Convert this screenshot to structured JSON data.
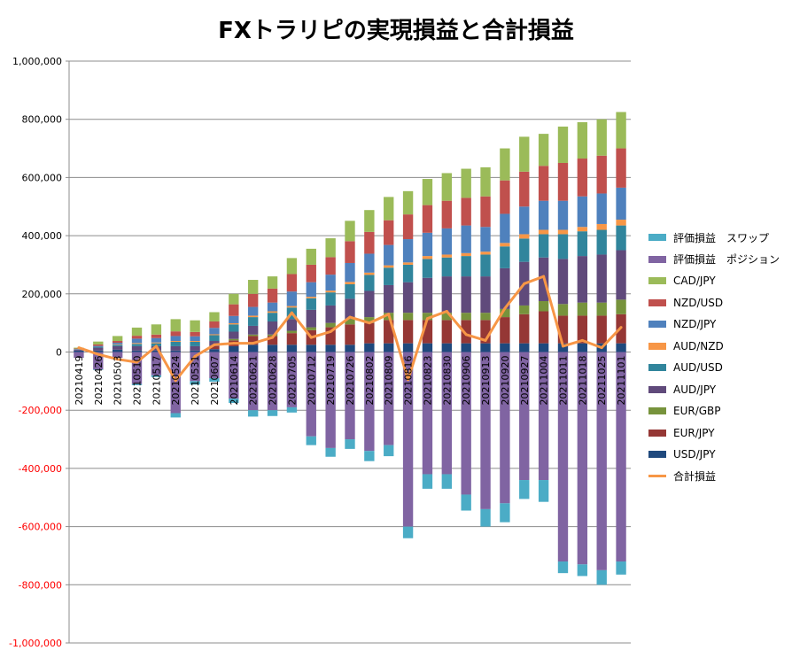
{
  "chart_data": {
    "type": "bar",
    "title": "FXトラリピの実現損益と合計損益",
    "ylim": [
      -1000000,
      1000000
    ],
    "yticks": [
      "1,000,000",
      "800,000",
      "600,000",
      "400,000",
      "200,000",
      "0",
      "-200,000",
      "-400,000",
      "-600,000",
      "-800,000",
      "-1,000,000"
    ],
    "ytick_values": [
      1000000,
      800000,
      600000,
      400000,
      200000,
      0,
      -200000,
      -400000,
      -600000,
      -800000,
      -1000000
    ],
    "negative_tick_color": "#ff0000",
    "grid": true,
    "legend_position": "right",
    "categories": [
      "20210419",
      "20210426",
      "20210503",
      "20210510",
      "20210517",
      "20210524",
      "20210531",
      "20210607",
      "20210614",
      "20210621",
      "20210628",
      "20210705",
      "20210712",
      "20210719",
      "20210726",
      "20210802",
      "20210809",
      "20210816",
      "20210823",
      "20210830",
      "20210906",
      "20210913",
      "20210920",
      "20210927",
      "20211004",
      "20211011",
      "20211018",
      "20211025",
      "20211101"
    ],
    "labeled_categories": [
      "20210419",
      "20210426",
      "20210503",
      "20210510",
      "20210517",
      "20210524",
      "20210531",
      "20210607",
      "20210614",
      "20210621",
      "20210628",
      "20210705",
      "20210712",
      "20210719",
      "20210726",
      "20210802",
      "20210809",
      "20210816",
      "20210823",
      "20210830",
      "20210906",
      "20210913",
      "20210920",
      "20210927",
      "20211004",
      "20211011",
      "20211018",
      "20211025",
      "20211101"
    ],
    "series": [
      {
        "name": "評価損益　スワップ",
        "color": "#4bacc6",
        "type": "bar",
        "values": [
          0,
          -2000,
          0,
          -4000,
          -6000,
          -15000,
          -12000,
          -12000,
          -15000,
          -22000,
          -20000,
          -18000,
          -30000,
          -30000,
          -33000,
          -35000,
          -38000,
          -40000,
          -50000,
          -50000,
          -55000,
          -60000,
          -65000,
          -65000,
          -75000,
          -40000,
          -40000,
          -50000,
          -45000
        ]
      },
      {
        "name": "評価損益　ポジション",
        "color": "#8064a2",
        "type": "bar",
        "values": [
          -20000,
          -60000,
          -20000,
          -110000,
          -80000,
          -210000,
          -100000,
          -90000,
          -160000,
          -200000,
          -200000,
          -190000,
          -290000,
          -330000,
          -300000,
          -340000,
          -320000,
          -600000,
          -420000,
          -420000,
          -490000,
          -540000,
          -520000,
          -440000,
          -440000,
          -720000,
          -730000,
          -750000,
          -720000
        ]
      },
      {
        "name": "CAD/JPY",
        "color": "#9bbb59",
        "type": "bar",
        "values": [
          3000,
          10000,
          17000,
          28000,
          35000,
          42000,
          40000,
          32000,
          36000,
          48000,
          42000,
          55000,
          55000,
          65000,
          70000,
          75000,
          80000,
          80000,
          90000,
          95000,
          100000,
          100000,
          110000,
          120000,
          110000,
          125000,
          125000,
          125000,
          125000
        ]
      },
      {
        "name": "NZD/USD",
        "color": "#c0504d",
        "type": "bar",
        "values": [
          2000,
          5000,
          6000,
          10000,
          12000,
          16000,
          15000,
          22000,
          40000,
          45000,
          48000,
          60000,
          60000,
          60000,
          75000,
          75000,
          85000,
          85000,
          95000,
          95000,
          95000,
          105000,
          115000,
          120000,
          120000,
          130000,
          130000,
          130000,
          135000
        ]
      },
      {
        "name": "NZD/JPY",
        "color": "#4f81bd",
        "type": "bar",
        "values": [
          1000,
          3000,
          5000,
          15000,
          15000,
          17000,
          16000,
          22000,
          25000,
          30000,
          30000,
          50000,
          50000,
          55000,
          65000,
          65000,
          70000,
          80000,
          80000,
          90000,
          95000,
          85000,
          100000,
          95000,
          100000,
          100000,
          105000,
          105000,
          110000
        ]
      },
      {
        "name": "AUD/NZD",
        "color": "#f79646",
        "type": "bar",
        "values": [
          0,
          0,
          2000,
          3000,
          3000,
          3000,
          3000,
          3000,
          4000,
          5000,
          5000,
          5000,
          5000,
          6000,
          8000,
          8000,
          8000,
          8000,
          10000,
          10000,
          10000,
          10000,
          12000,
          15000,
          15000,
          15000,
          15000,
          20000,
          20000
        ]
      },
      {
        "name": "AUD/USD",
        "color": "#31859c",
        "type": "bar",
        "values": [
          1000,
          3000,
          5000,
          8000,
          10000,
          15000,
          15000,
          20000,
          25000,
          30000,
          30000,
          40000,
          40000,
          45000,
          50000,
          55000,
          60000,
          60000,
          65000,
          65000,
          70000,
          75000,
          75000,
          80000,
          80000,
          85000,
          85000,
          85000,
          85000
        ]
      },
      {
        "name": "AUD/JPY",
        "color": "#604a7b",
        "type": "bar",
        "values": [
          3000,
          10000,
          12000,
          15000,
          15000,
          15000,
          15000,
          18000,
          25000,
          30000,
          45000,
          40000,
          60000,
          60000,
          70000,
          90000,
          95000,
          105000,
          120000,
          125000,
          125000,
          125000,
          140000,
          150000,
          150000,
          155000,
          160000,
          165000,
          170000
        ]
      },
      {
        "name": "EUR/GBP",
        "color": "#77933c",
        "type": "bar",
        "values": [
          0,
          0,
          0,
          0,
          0,
          0,
          0,
          0,
          5000,
          5000,
          5000,
          8000,
          10000,
          15000,
          18000,
          20000,
          25000,
          25000,
          25000,
          25000,
          25000,
          25000,
          28000,
          30000,
          35000,
          40000,
          45000,
          45000,
          50000
        ]
      },
      {
        "name": "EUR/JPY",
        "color": "#953735",
        "type": "bar",
        "values": [
          0,
          0,
          0,
          0,
          0,
          0,
          0,
          10000,
          20000,
          30000,
          30000,
          40000,
          50000,
          60000,
          70000,
          70000,
          80000,
          80000,
          80000,
          80000,
          80000,
          80000,
          90000,
          100000,
          110000,
          95000,
          95000,
          95000,
          100000
        ]
      },
      {
        "name": "USD/JPY",
        "color": "#1f497d",
        "type": "bar",
        "values": [
          5000,
          5000,
          8000,
          5000,
          5000,
          5000,
          5000,
          10000,
          20000,
          25000,
          25000,
          25000,
          25000,
          25000,
          25000,
          30000,
          30000,
          30000,
          30000,
          30000,
          30000,
          30000,
          30000,
          30000,
          30000,
          30000,
          30000,
          30000,
          30000
        ]
      },
      {
        "name": "合計損益",
        "color": "#f79646",
        "type": "line",
        "values": [
          15000,
          -8000,
          -25000,
          -35000,
          20000,
          -98000,
          -15000,
          25000,
          30000,
          30000,
          50000,
          135000,
          50000,
          70000,
          120000,
          100000,
          130000,
          -95000,
          115000,
          140000,
          60000,
          40000,
          150000,
          235000,
          260000,
          20000,
          40000,
          15000,
          85000
        ]
      }
    ]
  }
}
